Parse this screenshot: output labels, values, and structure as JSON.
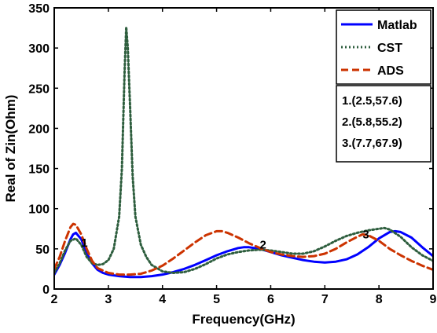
{
  "chart_data": {
    "type": "line",
    "title": "",
    "xlabel": "Frequency(GHz)",
    "ylabel": "Real of Zin(Ohm)",
    "xlim": [
      2,
      9
    ],
    "ylim": [
      0,
      350
    ],
    "xticks": [
      2,
      3,
      4,
      5,
      6,
      7,
      8,
      9
    ],
    "yticks": [
      0,
      50,
      100,
      150,
      200,
      250,
      300,
      350
    ],
    "grid": false,
    "legend_position": "top-right",
    "series": [
      {
        "name": "Matlab",
        "color": "#0000ff",
        "style": "solid",
        "points": [
          [
            2.0,
            18
          ],
          [
            2.1,
            30
          ],
          [
            2.2,
            45
          ],
          [
            2.3,
            62
          ],
          [
            2.35,
            68
          ],
          [
            2.4,
            70
          ],
          [
            2.5,
            62
          ],
          [
            2.6,
            45
          ],
          [
            2.7,
            32
          ],
          [
            2.8,
            24
          ],
          [
            2.9,
            20
          ],
          [
            3.0,
            18
          ],
          [
            3.2,
            16
          ],
          [
            3.4,
            15
          ],
          [
            3.6,
            15
          ],
          [
            3.8,
            16
          ],
          [
            4.0,
            18
          ],
          [
            4.2,
            21
          ],
          [
            4.4,
            25
          ],
          [
            4.6,
            30
          ],
          [
            4.8,
            36
          ],
          [
            5.0,
            42
          ],
          [
            5.2,
            47
          ],
          [
            5.4,
            51
          ],
          [
            5.5,
            52
          ],
          [
            5.6,
            52
          ],
          [
            5.8,
            50
          ],
          [
            6.0,
            46
          ],
          [
            6.2,
            42
          ],
          [
            6.4,
            39
          ],
          [
            6.6,
            36
          ],
          [
            6.8,
            34
          ],
          [
            7.0,
            33
          ],
          [
            7.2,
            34
          ],
          [
            7.4,
            37
          ],
          [
            7.6,
            43
          ],
          [
            7.8,
            52
          ],
          [
            8.0,
            63
          ],
          [
            8.2,
            71
          ],
          [
            8.3,
            72
          ],
          [
            8.4,
            71
          ],
          [
            8.6,
            64
          ],
          [
            8.8,
            52
          ],
          [
            9.0,
            41
          ]
        ]
      },
      {
        "name": "CST",
        "color": "#2e5e3e",
        "style": "dotted",
        "points": [
          [
            2.0,
            20
          ],
          [
            2.1,
            32
          ],
          [
            2.2,
            48
          ],
          [
            2.3,
            60
          ],
          [
            2.4,
            63
          ],
          [
            2.5,
            55
          ],
          [
            2.6,
            40
          ],
          [
            2.7,
            32
          ],
          [
            2.8,
            30
          ],
          [
            2.9,
            31
          ],
          [
            3.0,
            36
          ],
          [
            3.1,
            50
          ],
          [
            3.2,
            90
          ],
          [
            3.25,
            150
          ],
          [
            3.3,
            270
          ],
          [
            3.33,
            326
          ],
          [
            3.36,
            300
          ],
          [
            3.4,
            230
          ],
          [
            3.45,
            140
          ],
          [
            3.5,
            90
          ],
          [
            3.6,
            55
          ],
          [
            3.7,
            40
          ],
          [
            3.8,
            30
          ],
          [
            4.0,
            22
          ],
          [
            4.2,
            20
          ],
          [
            4.4,
            21
          ],
          [
            4.6,
            25
          ],
          [
            4.8,
            31
          ],
          [
            5.0,
            38
          ],
          [
            5.2,
            43
          ],
          [
            5.4,
            46
          ],
          [
            5.6,
            48
          ],
          [
            5.8,
            49
          ],
          [
            6.0,
            48
          ],
          [
            6.2,
            46
          ],
          [
            6.4,
            44
          ],
          [
            6.6,
            44
          ],
          [
            6.8,
            47
          ],
          [
            7.0,
            53
          ],
          [
            7.2,
            60
          ],
          [
            7.4,
            66
          ],
          [
            7.6,
            70
          ],
          [
            7.8,
            73
          ],
          [
            8.0,
            75
          ],
          [
            8.1,
            76
          ],
          [
            8.2,
            74
          ],
          [
            8.4,
            65
          ],
          [
            8.6,
            52
          ],
          [
            8.8,
            42
          ],
          [
            9.0,
            35
          ]
        ]
      },
      {
        "name": "ADS",
        "color": "#cc3300",
        "style": "dashed",
        "points": [
          [
            2.0,
            25
          ],
          [
            2.1,
            40
          ],
          [
            2.2,
            60
          ],
          [
            2.3,
            77
          ],
          [
            2.35,
            81
          ],
          [
            2.4,
            80
          ],
          [
            2.5,
            68
          ],
          [
            2.6,
            50
          ],
          [
            2.7,
            35
          ],
          [
            2.8,
            26
          ],
          [
            3.0,
            20
          ],
          [
            3.2,
            18
          ],
          [
            3.4,
            18
          ],
          [
            3.6,
            19
          ],
          [
            3.8,
            23
          ],
          [
            4.0,
            29
          ],
          [
            4.2,
            38
          ],
          [
            4.4,
            48
          ],
          [
            4.6,
            58
          ],
          [
            4.8,
            67
          ],
          [
            5.0,
            72
          ],
          [
            5.1,
            72
          ],
          [
            5.2,
            70
          ],
          [
            5.4,
            64
          ],
          [
            5.6,
            57
          ],
          [
            5.8,
            51
          ],
          [
            6.0,
            46
          ],
          [
            6.2,
            43
          ],
          [
            6.4,
            41
          ],
          [
            6.6,
            40
          ],
          [
            6.8,
            41
          ],
          [
            7.0,
            44
          ],
          [
            7.2,
            50
          ],
          [
            7.4,
            58
          ],
          [
            7.6,
            65
          ],
          [
            7.7,
            68
          ],
          [
            7.8,
            67
          ],
          [
            8.0,
            60
          ],
          [
            8.2,
            50
          ],
          [
            8.4,
            42
          ],
          [
            8.6,
            35
          ],
          [
            8.8,
            29
          ],
          [
            9.0,
            24
          ]
        ]
      }
    ],
    "point_markers": [
      {
        "label": "1",
        "x": 2.5,
        "y": 57.6
      },
      {
        "label": "2",
        "x": 5.8,
        "y": 55.2
      },
      {
        "label": "3",
        "x": 7.7,
        "y": 67.9
      }
    ],
    "annotation_box": {
      "position": "right, below legend",
      "lines": [
        "1.(2.5,57.6)",
        "2.(5.8,55.2)",
        "3.(7.7,67.9)"
      ]
    }
  }
}
